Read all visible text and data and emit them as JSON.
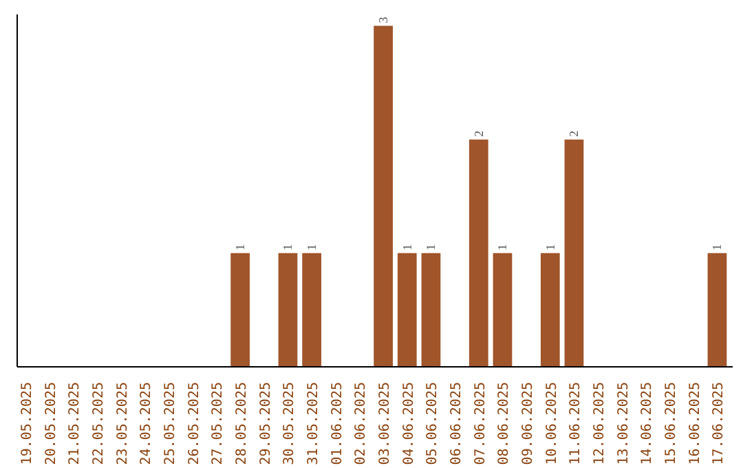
{
  "chart_data": {
    "type": "bar",
    "categories": [
      "19.05.2025",
      "20.05.2025",
      "21.05.2025",
      "22.05.2025",
      "23.05.2025",
      "24.05.2025",
      "25.05.2025",
      "26.05.2025",
      "27.05.2025",
      "28.05.2025",
      "29.05.2025",
      "30.05.2025",
      "31.05.2025",
      "01.06.2025",
      "02.06.2025",
      "03.06.2025",
      "04.06.2025",
      "05.06.2025",
      "06.06.2025",
      "07.06.2025",
      "08.06.2025",
      "09.06.2025",
      "10.06.2025",
      "11.06.2025",
      "12.06.2025",
      "13.06.2025",
      "14.06.2025",
      "15.06.2025",
      "16.06.2025",
      "17.06.2025"
    ],
    "values": [
      0,
      0,
      0,
      0,
      0,
      0,
      0,
      0,
      0,
      1,
      0,
      1,
      1,
      0,
      0,
      3,
      1,
      1,
      0,
      2,
      1,
      0,
      1,
      2,
      0,
      0,
      0,
      0,
      0,
      1
    ],
    "value_labels": [
      null,
      null,
      null,
      null,
      null,
      null,
      null,
      null,
      null,
      "1",
      null,
      "1",
      "1",
      null,
      null,
      "3",
      "1",
      "1",
      null,
      "2",
      "1",
      null,
      "1",
      "2",
      null,
      null,
      null,
      null,
      null,
      "1"
    ],
    "color": "#a0552b",
    "ylim": [
      0,
      3.1
    ],
    "tick_labels": "x",
    "grid": false
  }
}
